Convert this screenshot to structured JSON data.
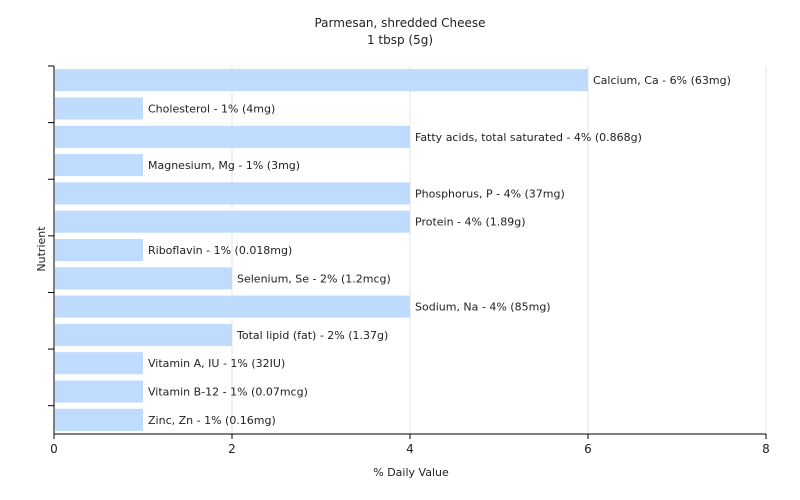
{
  "chart_data": {
    "type": "bar",
    "orientation": "horizontal",
    "title": "Parmesan, shredded Cheese",
    "subtitle": "1 tbsp (5g)",
    "xlabel": "% Daily Value",
    "ylabel": "Nutrient",
    "xlim": [
      0,
      8
    ],
    "xticks": [
      0,
      2,
      4,
      6,
      8
    ],
    "grid": true,
    "bar_color": "#bfdcff",
    "categories": [
      "Calcium, Ca",
      "Cholesterol",
      "Fatty acids, total saturated",
      "Magnesium, Mg",
      "Phosphorus, P",
      "Protein",
      "Riboflavin",
      "Selenium, Se",
      "Sodium, Na",
      "Total lipid (fat)",
      "Vitamin A, IU",
      "Vitamin B-12",
      "Zinc, Zn"
    ],
    "values": [
      6,
      1,
      4,
      1,
      4,
      4,
      1,
      2,
      4,
      2,
      1,
      1,
      1
    ],
    "labels": [
      "Calcium, Ca - 6% (63mg)",
      "Cholesterol - 1% (4mg)",
      "Fatty acids, total saturated - 4% (0.868g)",
      "Magnesium, Mg - 1% (3mg)",
      "Phosphorus, P - 4% (37mg)",
      "Protein - 4% (1.89g)",
      "Riboflavin - 1% (0.018mg)",
      "Selenium, Se - 2% (1.2mcg)",
      "Sodium, Na - 4% (85mg)",
      "Total lipid (fat) - 2% (1.37g)",
      "Vitamin A, IU - 1% (32IU)",
      "Vitamin B-12 - 1% (0.07mcg)",
      "Zinc, Zn - 1% (0.16mg)"
    ]
  }
}
